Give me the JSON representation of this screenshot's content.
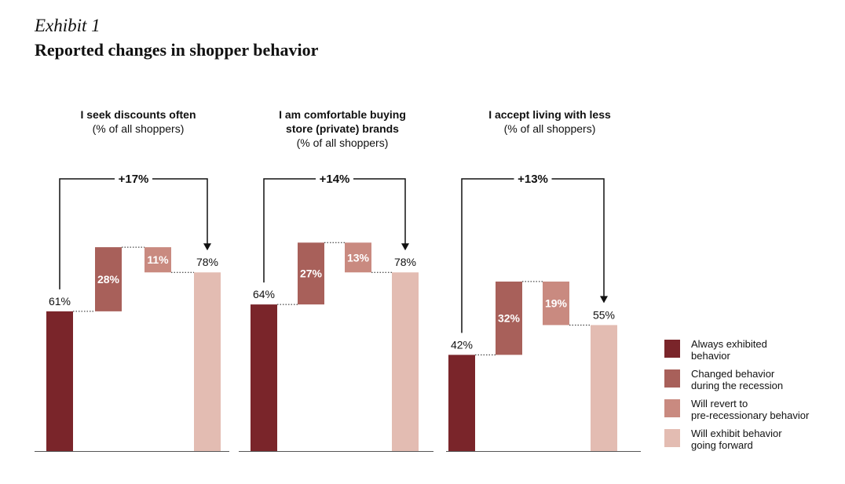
{
  "header": {
    "exhibit": "Exhibit 1",
    "title": "Reported changes in shopper behavior"
  },
  "colors": {
    "always": "#7a252a",
    "changed": "#a8605a",
    "revert": "#c98a80",
    "forward": "#e3bcb2"
  },
  "chart_data": [
    {
      "type": "bar",
      "subtype": "waterfall",
      "title": [
        "I seek discounts often"
      ],
      "subtitle": "(% of all shoppers)",
      "ylim": [
        0,
        100
      ],
      "series": [
        {
          "key": "always",
          "name": "Always exhibited behavior",
          "value": 61,
          "label": "61%"
        },
        {
          "key": "changed",
          "name": "Changed behavior during the recession",
          "value": 28,
          "label": "28%"
        },
        {
          "key": "revert",
          "name": "Will revert to pre-recessionary behavior",
          "value": -11,
          "label": "11%"
        },
        {
          "key": "forward",
          "name": "Will exhibit behavior going forward",
          "value": 78,
          "label": "78%"
        }
      ],
      "delta": "+17%"
    },
    {
      "type": "bar",
      "subtype": "waterfall",
      "title": [
        "I am comfortable buying",
        "store (private) brands"
      ],
      "subtitle": "(% of all shoppers)",
      "ylim": [
        0,
        100
      ],
      "series": [
        {
          "key": "always",
          "name": "Always exhibited behavior",
          "value": 64,
          "label": "64%"
        },
        {
          "key": "changed",
          "name": "Changed behavior during the recession",
          "value": 27,
          "label": "27%"
        },
        {
          "key": "revert",
          "name": "Will revert to pre-recessionary behavior",
          "value": -13,
          "label": "13%"
        },
        {
          "key": "forward",
          "name": "Will exhibit behavior going forward",
          "value": 78,
          "label": "78%"
        }
      ],
      "delta": "+14%"
    },
    {
      "type": "bar",
      "subtype": "waterfall",
      "title": [
        "I accept living with less"
      ],
      "subtitle": "(% of all shoppers)",
      "ylim": [
        0,
        100
      ],
      "series": [
        {
          "key": "always",
          "name": "Always exhibited behavior",
          "value": 42,
          "label": "42%"
        },
        {
          "key": "changed",
          "name": "Changed behavior during the recession",
          "value": 32,
          "label": "32%"
        },
        {
          "key": "revert",
          "name": "Will revert to pre-recessionary behavior",
          "value": -19,
          "label": "19%"
        },
        {
          "key": "forward",
          "name": "Will exhibit behavior going forward",
          "value": 55,
          "label": "55%"
        }
      ],
      "delta": "+13%"
    }
  ],
  "legend": {
    "placement": "bottom-right",
    "items": [
      {
        "key": "always",
        "lines": [
          "Always exhibited",
          "behavior"
        ]
      },
      {
        "key": "changed",
        "lines": [
          "Changed behavior",
          "during the recession"
        ]
      },
      {
        "key": "revert",
        "lines": [
          "Will revert to",
          "pre-recessionary behavior"
        ]
      },
      {
        "key": "forward",
        "lines": [
          "Will exhibit behavior",
          "going forward"
        ]
      }
    ]
  }
}
